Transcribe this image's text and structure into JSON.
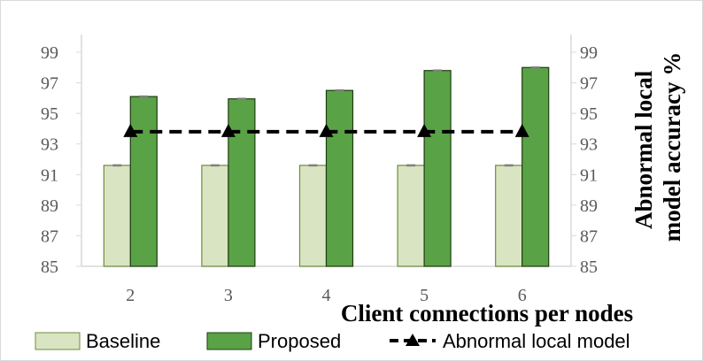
{
  "chart_data": {
    "type": "bar",
    "categories": [
      "2",
      "3",
      "4",
      "5",
      "6"
    ],
    "series": [
      {
        "name": "Baseline",
        "kind": "bar",
        "values": [
          91.6,
          91.6,
          91.6,
          91.6,
          91.6
        ],
        "color": "#d9e5c2",
        "stroke": "#6e8b3d"
      },
      {
        "name": "Proposed",
        "kind": "bar",
        "values": [
          96.1,
          95.95,
          96.5,
          97.8,
          98.0
        ],
        "color": "#5aa246",
        "stroke": "#1f3d12"
      },
      {
        "name": "Abnormal local model",
        "kind": "line",
        "values": [
          93.8,
          93.8,
          93.8,
          93.8,
          93.8
        ],
        "color": "#000000",
        "line_style": "dashed",
        "marker": "triangle"
      }
    ],
    "xlabel": "Client connections per nodes",
    "ylabel_right": "Abnormal local model accuracy %",
    "ylim": [
      85,
      99
    ],
    "yticks": [
      "85",
      "87",
      "89",
      "91",
      "93",
      "95",
      "97",
      "99"
    ],
    "y_axes": "both",
    "grid": false,
    "legend_position": "bottom"
  }
}
